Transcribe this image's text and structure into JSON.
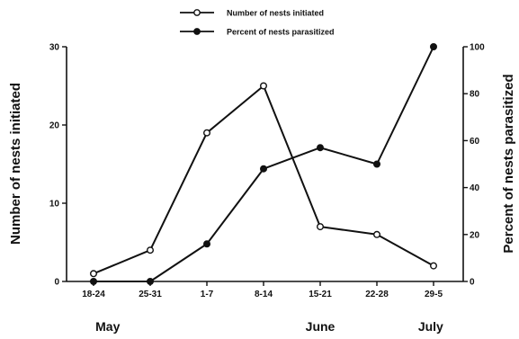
{
  "chart_data": {
    "type": "line",
    "categories": [
      "18-24",
      "25-31",
      "1-7",
      "8-14",
      "15-21",
      "22-28",
      "29-5"
    ],
    "months": [
      {
        "label": "May",
        "category_index": 0.25
      },
      {
        "label": "June",
        "category_index": 4.0
      },
      {
        "label": "July",
        "category_index": 5.95
      }
    ],
    "title": "",
    "ylabel_left": "Number of nests initiated",
    "ylabel_right": "Percent of nests parasitized",
    "ylim_left": [
      0,
      30
    ],
    "ylim_right": [
      0,
      100
    ],
    "yticks_left": [
      0,
      10,
      20,
      30
    ],
    "yticks_right": [
      0,
      20,
      40,
      60,
      80,
      100
    ],
    "grid": false,
    "legend_position": "top-center",
    "series": [
      {
        "name": "Number of nests initiated",
        "axis": "left",
        "marker": "open-circle",
        "values": [
          1,
          4,
          19,
          25,
          7,
          6,
          2
        ]
      },
      {
        "name": "Percent of nests parasitized",
        "axis": "right",
        "marker": "filled-circle",
        "values": [
          0,
          0,
          16,
          48,
          57,
          50,
          100
        ]
      }
    ]
  }
}
